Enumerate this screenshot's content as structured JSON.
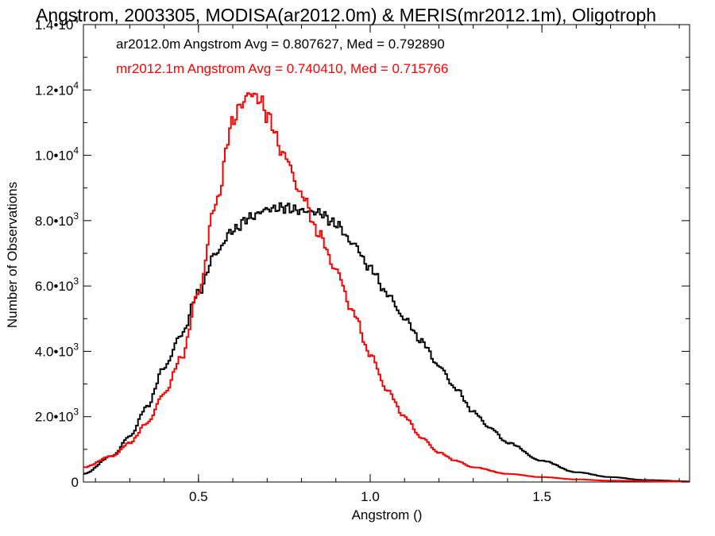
{
  "chart_data": {
    "type": "line",
    "title": "Angstrom, 2003305, MODISA(ar2012.0m) & MERIS(mr2012.1m), Oligotroph",
    "xlabel": "Angstrom ()",
    "ylabel": "Number of Observations",
    "xlim": [
      0.165,
      1.93
    ],
    "ylim": [
      0,
      14000
    ],
    "x_ticks": [
      0.5,
      1.0,
      1.5
    ],
    "x_tick_labels": [
      "0.5",
      "1.0",
      "1.5"
    ],
    "y_ticks": [
      0,
      2000,
      4000,
      6000,
      8000,
      10000,
      12000,
      14000
    ],
    "y_tick_labels": [
      {
        "mant": "0",
        "exp": ""
      },
      {
        "mant": "2.0•10",
        "exp": "3"
      },
      {
        "mant": "4.0•10",
        "exp": "3"
      },
      {
        "mant": "6.0•10",
        "exp": "3"
      },
      {
        "mant": "8.0•10",
        "exp": "3"
      },
      {
        "mant": "1.0•10",
        "exp": "4"
      },
      {
        "mant": "1.2•10",
        "exp": "4"
      },
      {
        "mant": "1.4•10",
        "exp": "4"
      }
    ],
    "grid": false,
    "legend_position": "top-left",
    "annotations": [
      "ar2012.0m Angstrom Avg = 0.807627, Med = 0.792890",
      "mr2012.1m Angstrom Avg = 0.740410, Med = 0.715766"
    ],
    "series": [
      {
        "color": "#000000",
        "x": [
          0.165,
          0.25,
          0.3,
          0.35,
          0.4,
          0.45,
          0.5,
          0.55,
          0.6,
          0.65,
          0.7,
          0.75,
          0.8,
          0.85,
          0.9,
          0.95,
          1.0,
          1.05,
          1.1,
          1.15,
          1.2,
          1.25,
          1.3,
          1.35,
          1.4,
          1.5,
          1.6,
          1.7,
          1.8,
          1.93
        ],
        "values": [
          250,
          800,
          1400,
          2300,
          3500,
          4500,
          5800,
          7000,
          7700,
          8100,
          8350,
          8400,
          8300,
          8250,
          7900,
          7300,
          6550,
          5750,
          5000,
          4300,
          3550,
          2850,
          2150,
          1650,
          1200,
          650,
          300,
          150,
          60,
          20
        ]
      },
      {
        "color": "#ff0000",
        "x": [
          0.165,
          0.25,
          0.3,
          0.35,
          0.4,
          0.45,
          0.5,
          0.55,
          0.6,
          0.62,
          0.65,
          0.68,
          0.7,
          0.75,
          0.8,
          0.85,
          0.9,
          0.95,
          1.0,
          1.05,
          1.1,
          1.15,
          1.2,
          1.25,
          1.3,
          1.4,
          1.5,
          1.6,
          1.7,
          1.93
        ],
        "values": [
          450,
          800,
          1200,
          1800,
          2700,
          3800,
          5800,
          8500,
          11000,
          11500,
          11900,
          11700,
          11200,
          10000,
          8800,
          7600,
          6500,
          5200,
          3900,
          2800,
          2000,
          1350,
          900,
          650,
          450,
          250,
          150,
          80,
          40,
          10
        ]
      }
    ]
  }
}
